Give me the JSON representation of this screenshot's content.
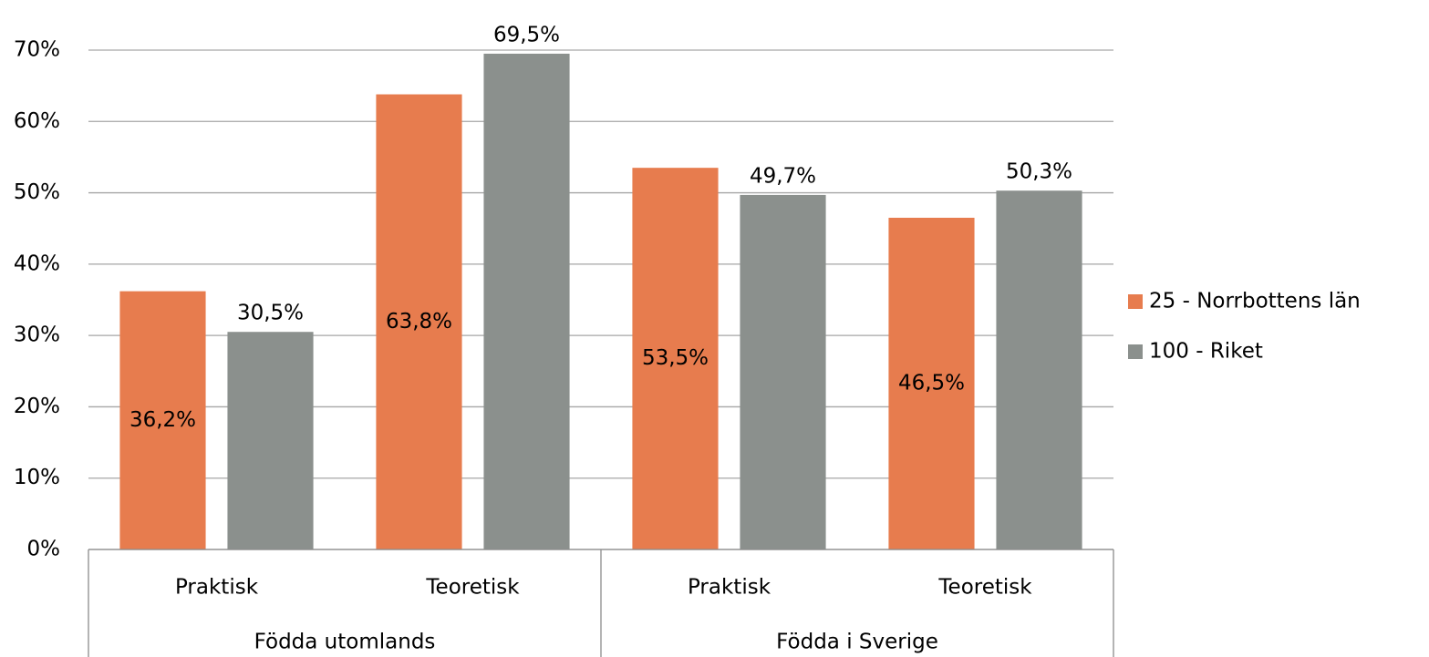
{
  "chart_data": {
    "type": "bar",
    "groups": [
      {
        "name": "Födda utomlands",
        "categories": [
          "Praktisk",
          "Teoretisk"
        ]
      },
      {
        "name": "Födda i Sverige",
        "categories": [
          "Praktisk",
          "Teoretisk"
        ]
      }
    ],
    "series": [
      {
        "name": "25 - Norrbottens län",
        "color": "#e77c4e",
        "values": [
          36.2,
          63.8,
          53.5,
          46.5
        ],
        "value_labels": [
          "36,2%",
          "63,8%",
          "53,5%",
          "46,5%"
        ]
      },
      {
        "name": "100 - Riket",
        "color": "#8b908d",
        "values": [
          30.5,
          69.5,
          49.7,
          50.3
        ],
        "value_labels": [
          "30,5%",
          "69,5%",
          "49,7%",
          "50,3%"
        ]
      }
    ],
    "ylim": [
      0,
      70
    ],
    "yticks": [
      {
        "value": 0,
        "label": "0%"
      },
      {
        "value": 10,
        "label": "10%"
      },
      {
        "value": 20,
        "label": "20%"
      },
      {
        "value": 30,
        "label": "30%"
      },
      {
        "value": 40,
        "label": "40%"
      },
      {
        "value": 50,
        "label": "50%"
      },
      {
        "value": 60,
        "label": "60%"
      },
      {
        "value": 70,
        "label": "70%"
      }
    ],
    "grid": true,
    "legend": "right"
  }
}
